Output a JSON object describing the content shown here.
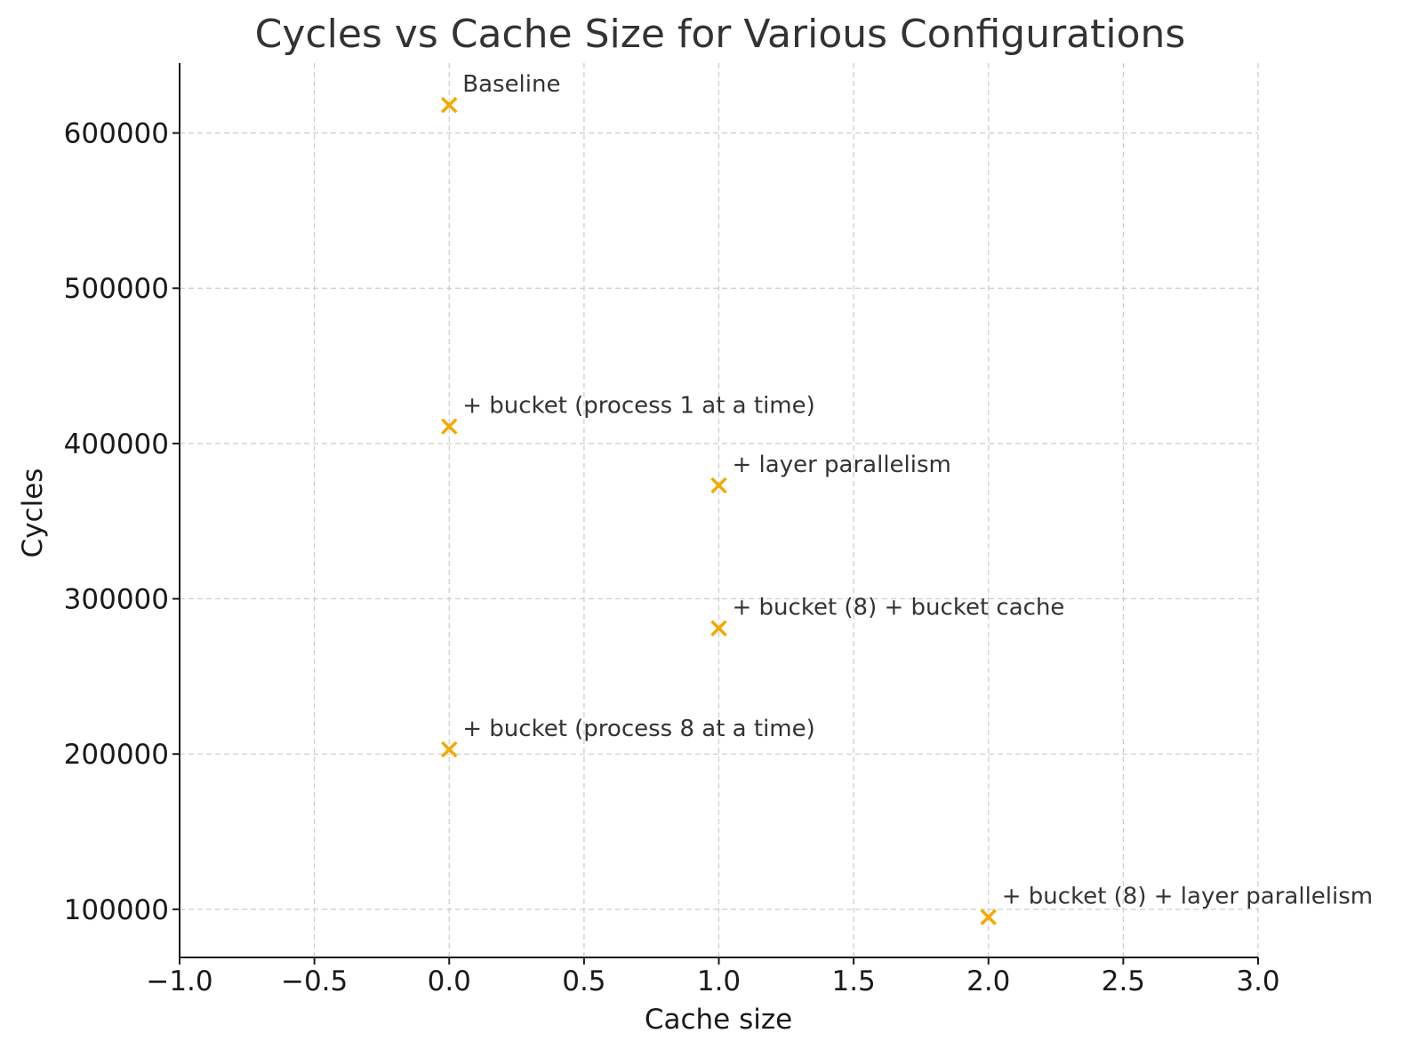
{
  "chart_data": {
    "type": "scatter",
    "title": "Cycles vs Cache Size for Various Configurations",
    "xlabel": "Cache size",
    "ylabel": "Cycles",
    "xlim": [
      -1.0,
      3.0
    ],
    "ylim": [
      69000,
      645000
    ],
    "xticks": [
      "−1.0",
      "−0.5",
      "0.0",
      "0.5",
      "1.0",
      "1.5",
      "2.0",
      "2.5",
      "3.0"
    ],
    "xtick_values": [
      -1.0,
      -0.5,
      0.0,
      0.5,
      1.0,
      1.5,
      2.0,
      2.5,
      3.0
    ],
    "yticks": [
      "100000",
      "200000",
      "300000",
      "400000",
      "500000",
      "600000"
    ],
    "ytick_values": [
      100000,
      200000,
      300000,
      400000,
      500000,
      600000
    ],
    "grid": true,
    "marker": "x",
    "marker_color": "#f2a900",
    "points": [
      {
        "x": 0,
        "y": 618000,
        "label": "Baseline"
      },
      {
        "x": 0,
        "y": 411000,
        "label": "+ bucket (process 1 at a time)"
      },
      {
        "x": 1,
        "y": 373000,
        "label": "+ layer parallelism"
      },
      {
        "x": 1,
        "y": 281000,
        "label": "+ bucket (8) + bucket cache"
      },
      {
        "x": 0,
        "y": 203000,
        "label": "+ bucket (process 8 at a time)"
      },
      {
        "x": 2,
        "y": 95000,
        "label": "+ bucket (8) + layer parallelism"
      }
    ]
  }
}
